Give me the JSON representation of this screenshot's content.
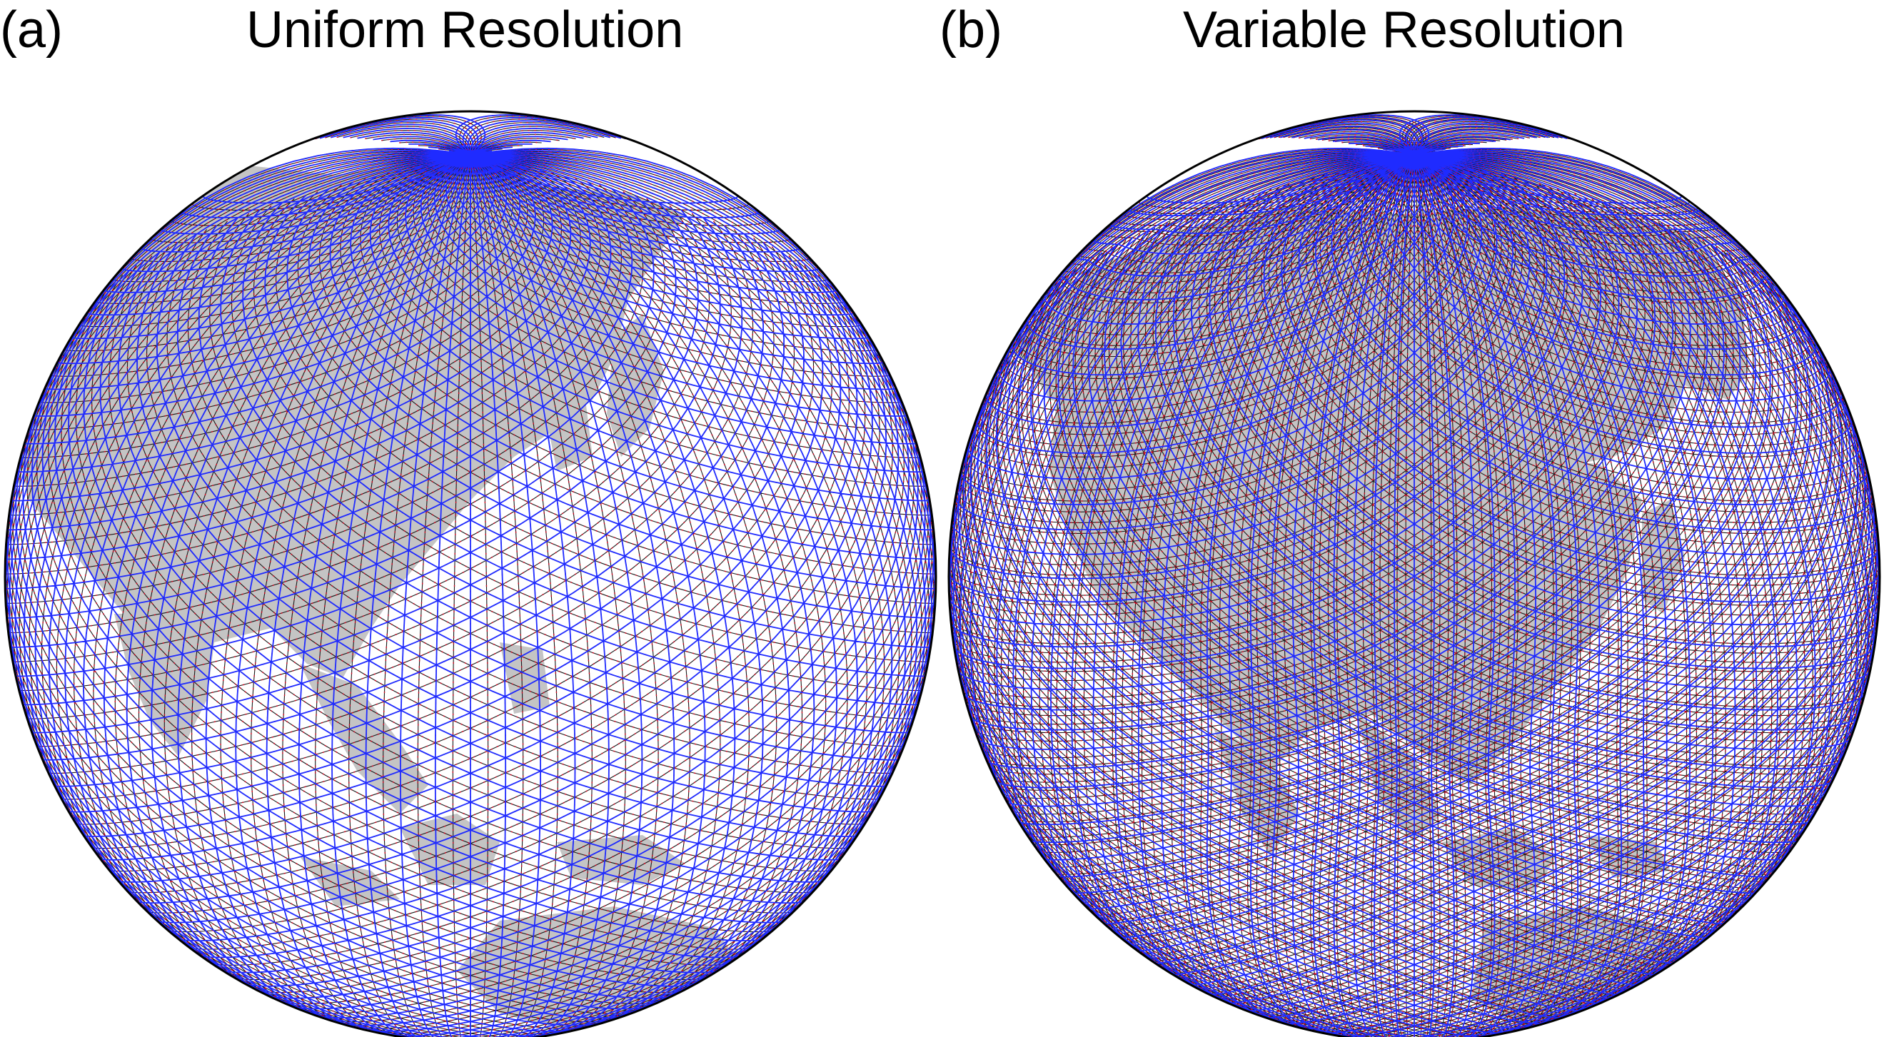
{
  "panels": [
    {
      "letter": "(a)",
      "title": "Uniform Resolution",
      "mesh": "uniform"
    },
    {
      "letter": "(b)",
      "title": "Variable Resolution",
      "mesh": "variable"
    }
  ],
  "colors": {
    "background": "#ffffff",
    "land": "#c4c4c4",
    "voronoi_edges": "#1a1a1a",
    "delaunay_edges": "#1f2bff",
    "edge_markers": "#d8001c",
    "globe_outline": "#000000"
  }
}
